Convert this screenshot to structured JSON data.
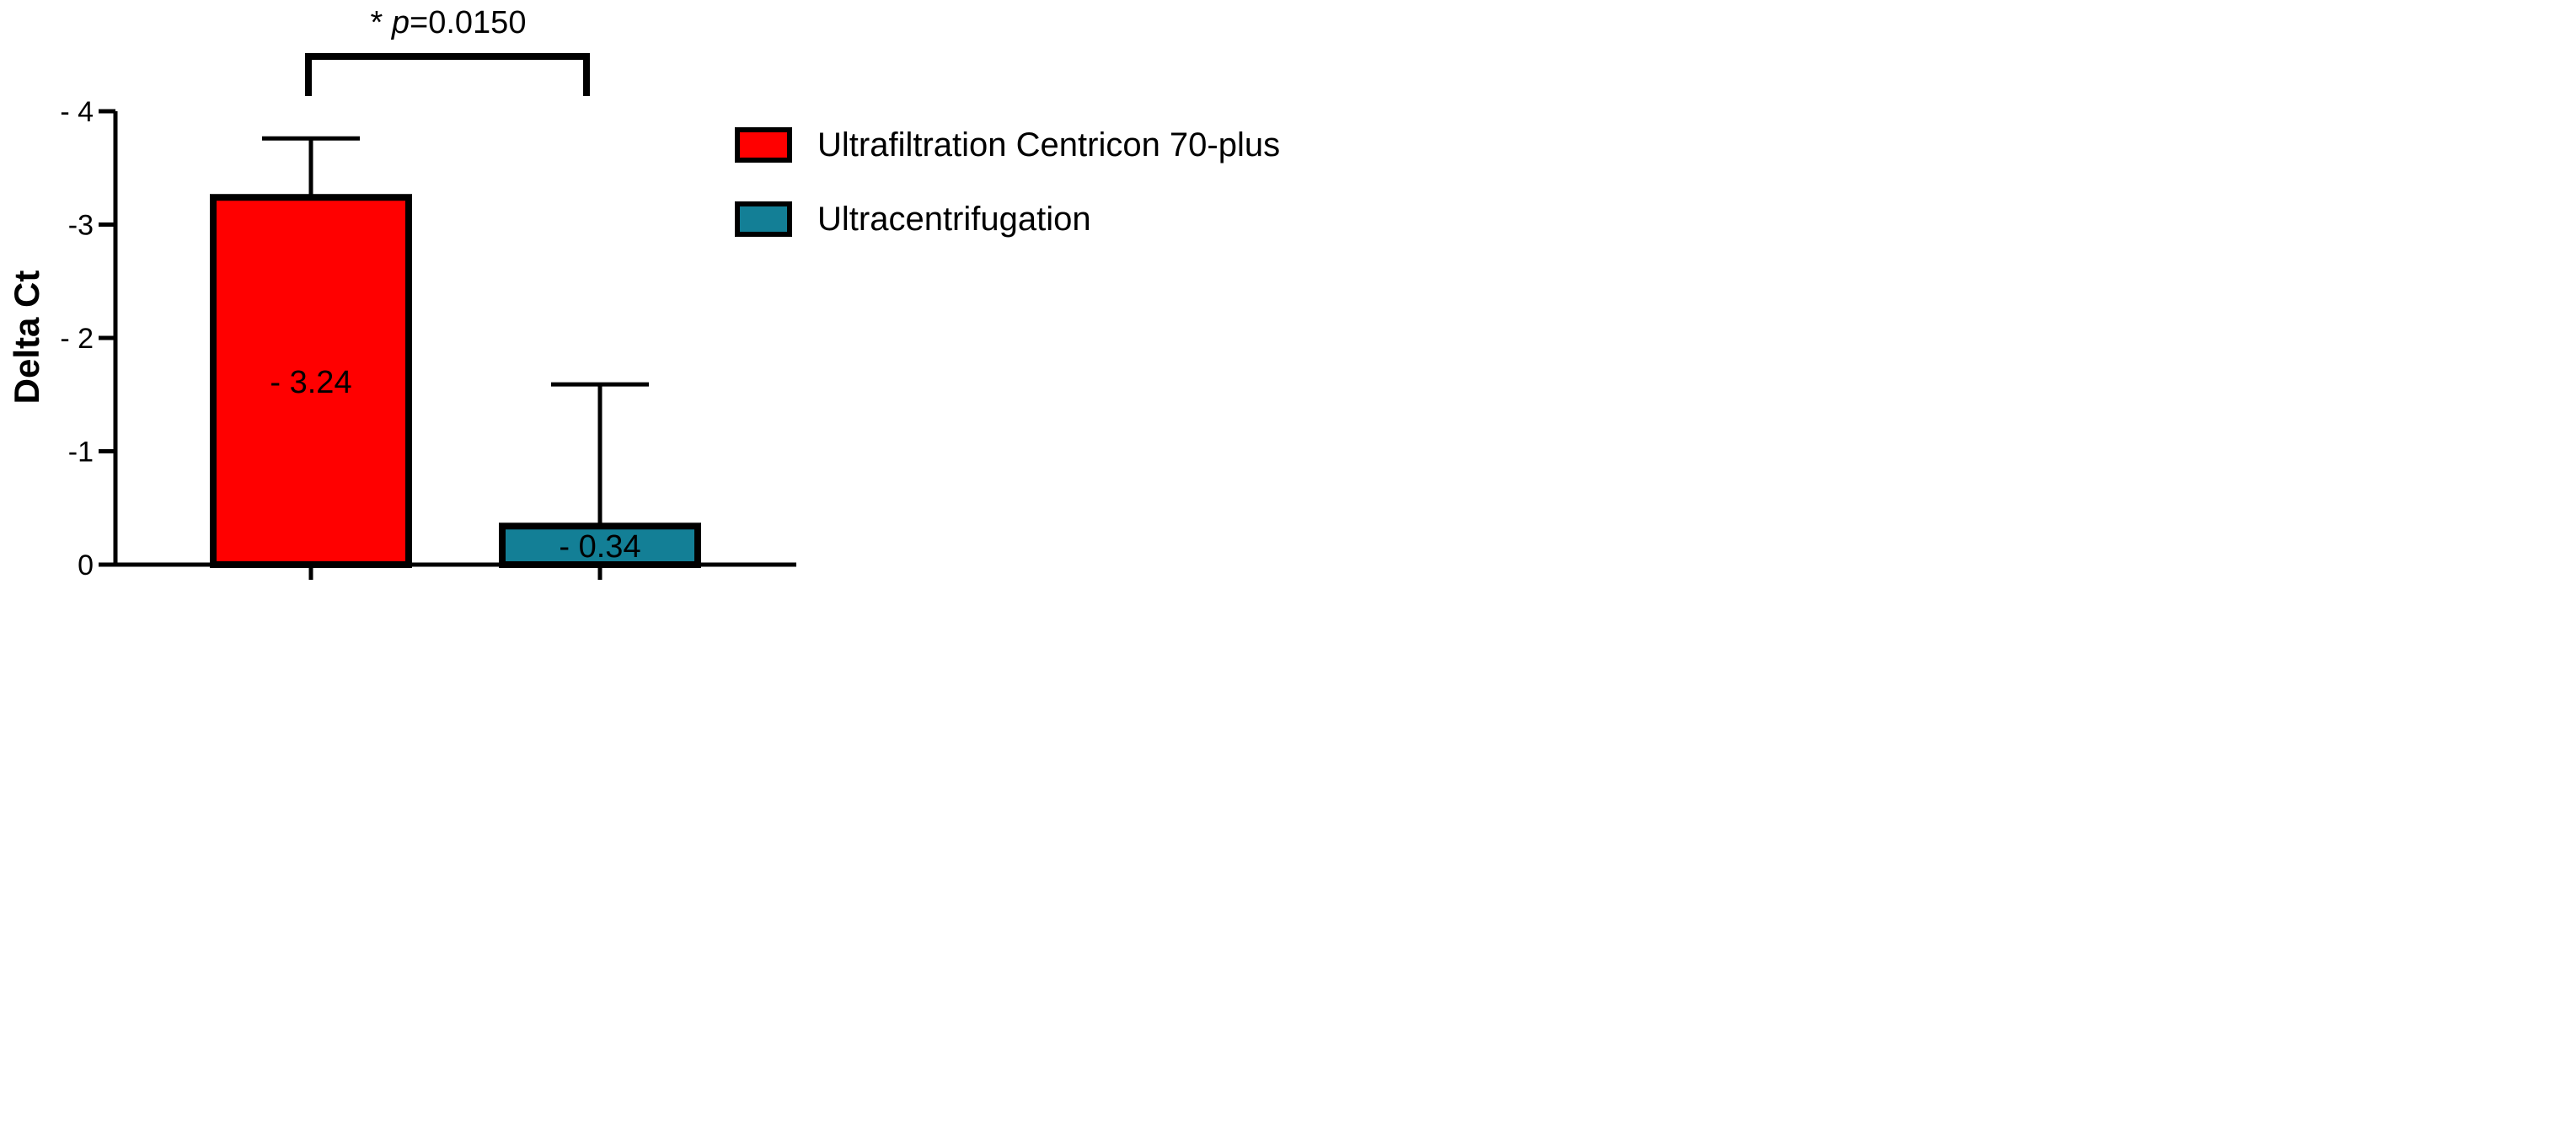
{
  "chart_data": {
    "type": "bar",
    "categories": [
      "Ultrafiltration Centricon 70-plus",
      "Ultracentrifugation"
    ],
    "series": [
      {
        "values": [
          -3.24,
          -0.34
        ],
        "errors": [
          0.52,
          1.25
        ],
        "colors": [
          "#ff0000",
          "#137f96"
        ],
        "value_labels": [
          "- 3.24",
          "- 0.34"
        ]
      }
    ],
    "ylabel": "Delta Ct",
    "ylim": [
      0,
      -4
    ],
    "axis_inverted": true,
    "yticks": [
      {
        "value": 0,
        "label": "0"
      },
      {
        "value": -1,
        "label": "-1"
      },
      {
        "value": -2,
        "label": "- 2"
      },
      {
        "value": -3,
        "label": "-3"
      },
      {
        "value": -4,
        "label": "- 4"
      }
    ],
    "significance": {
      "star": "*",
      "p_symbol": "p",
      "p_value": "=0.0150"
    },
    "legend": {
      "placement": "right",
      "items": [
        {
          "label": "Ultrafiltration Centricon 70-plus",
          "color": "#ff0000"
        },
        {
          "label": "Ultracentrifugation",
          "color": "#137f96"
        }
      ]
    },
    "grid": false
  }
}
